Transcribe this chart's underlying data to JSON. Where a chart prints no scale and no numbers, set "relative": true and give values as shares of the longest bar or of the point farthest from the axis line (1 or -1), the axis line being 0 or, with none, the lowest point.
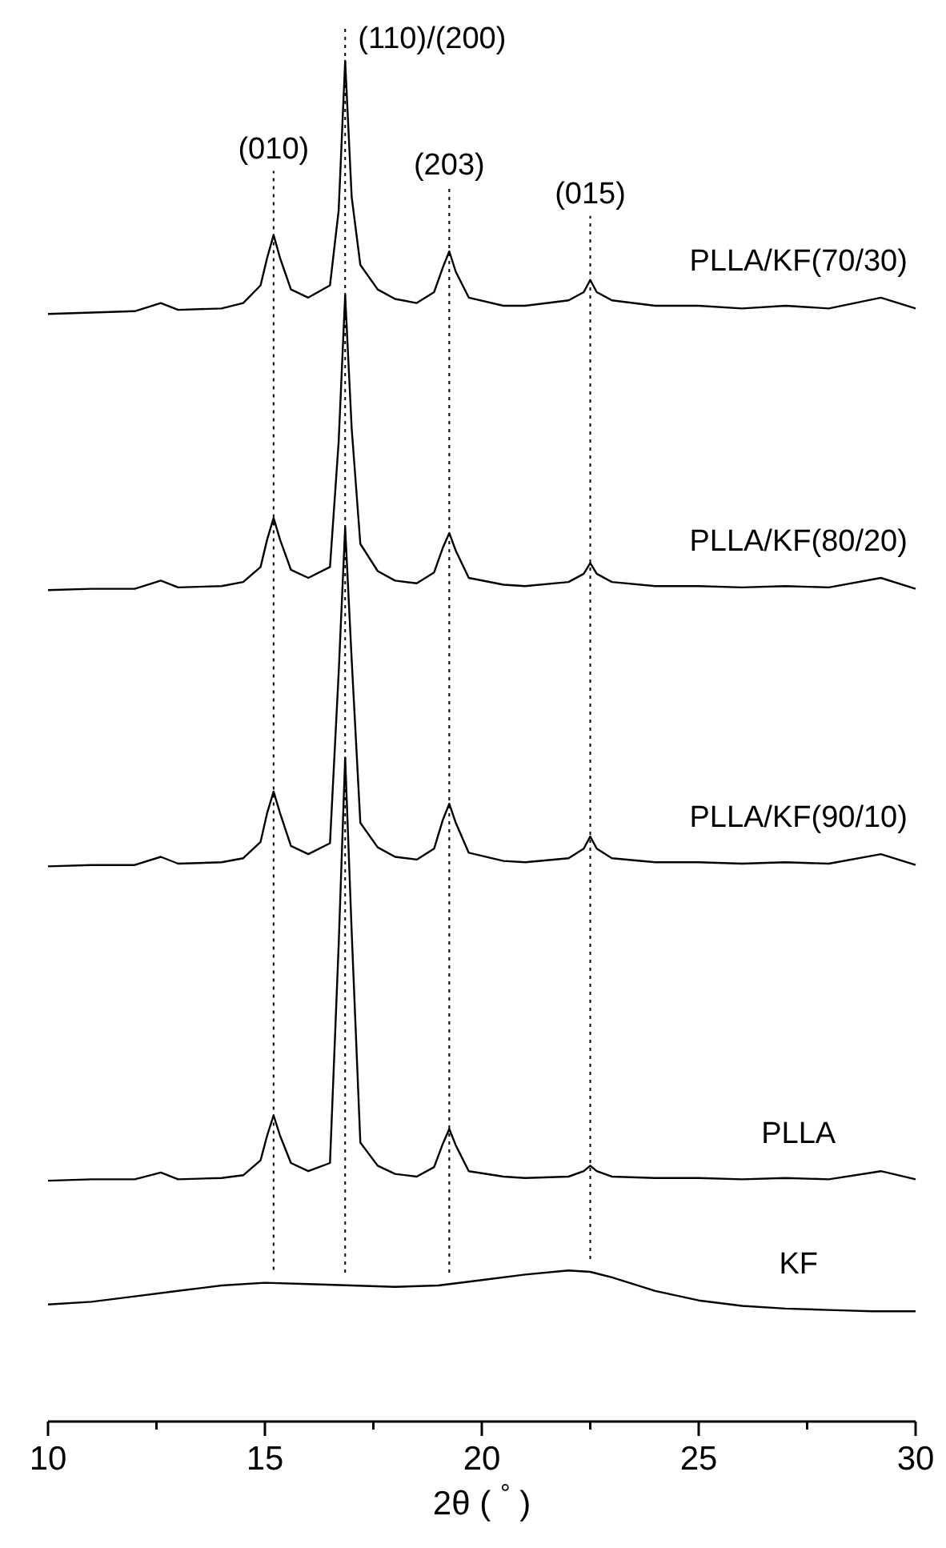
{
  "chart_data": {
    "type": "line",
    "relative": true,
    "xlabel": "2θ ( $^{°}$ )",
    "xlim": [
      10,
      30
    ],
    "xticks": [
      10,
      {
        "value": 12.5,
        "label": null
      },
      15,
      {
        "value": 17.5,
        "label": null
      },
      20,
      {
        "value": 22.5,
        "label": null
      },
      25,
      {
        "value": 27.5,
        "label": null
      },
      30
    ],
    "tick_labels": "x",
    "grid": false,
    "line_style": "solid",
    "x": [
      10,
      11,
      12,
      12.6,
      13,
      14,
      14.5,
      14.9,
      15.05,
      15.2,
      15.35,
      15.6,
      16,
      16.5,
      16.7,
      16.85,
      17.0,
      17.2,
      17.6,
      18,
      18.5,
      18.9,
      19.1,
      19.25,
      19.4,
      19.7,
      20.5,
      21,
      22,
      22.35,
      22.5,
      22.65,
      23,
      24,
      25,
      26,
      27,
      28,
      29.2,
      30
    ],
    "series": [
      {
        "name": "PLLA/KF(70/30)",
        "color": "#000000",
        "values": [
          0.814,
          0.815,
          0.816,
          0.822,
          0.817,
          0.818,
          0.822,
          0.835,
          0.855,
          0.872,
          0.855,
          0.832,
          0.826,
          0.835,
          0.89,
          1.0,
          0.9,
          0.85,
          0.832,
          0.825,
          0.822,
          0.83,
          0.848,
          0.86,
          0.845,
          0.826,
          0.82,
          0.82,
          0.824,
          0.83,
          0.839,
          0.83,
          0.824,
          0.82,
          0.82,
          0.818,
          0.82,
          0.818,
          0.826,
          0.818
        ]
      },
      {
        "name": "PLLA/KF(80/20)",
        "color": "#000000",
        "values": [
          0.611,
          0.612,
          0.612,
          0.618,
          0.613,
          0.614,
          0.617,
          0.628,
          0.648,
          0.664,
          0.648,
          0.626,
          0.62,
          0.628,
          0.72,
          0.828,
          0.73,
          0.645,
          0.625,
          0.618,
          0.616,
          0.624,
          0.642,
          0.653,
          0.64,
          0.62,
          0.615,
          0.614,
          0.617,
          0.623,
          0.631,
          0.623,
          0.617,
          0.614,
          0.614,
          0.613,
          0.614,
          0.613,
          0.62,
          0.612
        ]
      },
      {
        "name": "PLLA/KF(90/10)",
        "color": "#000000",
        "values": [
          0.408,
          0.409,
          0.409,
          0.415,
          0.41,
          0.411,
          0.414,
          0.426,
          0.447,
          0.463,
          0.447,
          0.423,
          0.417,
          0.425,
          0.55,
          0.657,
          0.56,
          0.44,
          0.422,
          0.415,
          0.413,
          0.421,
          0.442,
          0.454,
          0.44,
          0.418,
          0.412,
          0.411,
          0.414,
          0.421,
          0.43,
          0.421,
          0.414,
          0.411,
          0.411,
          0.41,
          0.411,
          0.41,
          0.417,
          0.409
        ]
      },
      {
        "name": "PLLA",
        "color": "#000000",
        "values": [
          0.177,
          0.178,
          0.178,
          0.183,
          0.178,
          0.179,
          0.181,
          0.192,
          0.21,
          0.225,
          0.21,
          0.19,
          0.184,
          0.19,
          0.35,
          0.488,
          0.36,
          0.205,
          0.188,
          0.182,
          0.18,
          0.187,
          0.204,
          0.215,
          0.203,
          0.184,
          0.18,
          0.179,
          0.18,
          0.184,
          0.188,
          0.184,
          0.18,
          0.179,
          0.179,
          0.178,
          0.179,
          0.178,
          0.184,
          0.178
        ]
      },
      {
        "name": "KF",
        "color": "#000000",
        "x": [
          10,
          11,
          12,
          13,
          14,
          15,
          16,
          17,
          18,
          19,
          20,
          21,
          22,
          22.5,
          23,
          24,
          25,
          26,
          27,
          28,
          29,
          30
        ],
        "values": [
          0.086,
          0.088,
          0.092,
          0.096,
          0.1,
          0.102,
          0.101,
          0.1,
          0.099,
          0.1,
          0.104,
          0.108,
          0.111,
          0.11,
          0.106,
          0.096,
          0.089,
          0.085,
          0.083,
          0.082,
          0.081,
          0.081
        ]
      }
    ],
    "ref_lines": [
      {
        "axis": "x",
        "value": 15.2,
        "line_style": "dotted"
      },
      {
        "axis": "x",
        "value": 16.85,
        "line_style": "dotted"
      },
      {
        "axis": "x",
        "value": 19.25,
        "line_style": "dotted"
      },
      {
        "axis": "x",
        "value": 22.5,
        "line_style": "dotted"
      }
    ],
    "annotations": [
      {
        "text": "(010)",
        "x": 15.2,
        "y": 0.872
      },
      {
        "text": "(110)/(200)",
        "x": 16.85,
        "y": 1.0
      },
      {
        "text": "(203)",
        "x": 19.25,
        "y": 0.86
      },
      {
        "text": "(015)",
        "x": 22.5,
        "y": 0.839
      }
    ]
  }
}
